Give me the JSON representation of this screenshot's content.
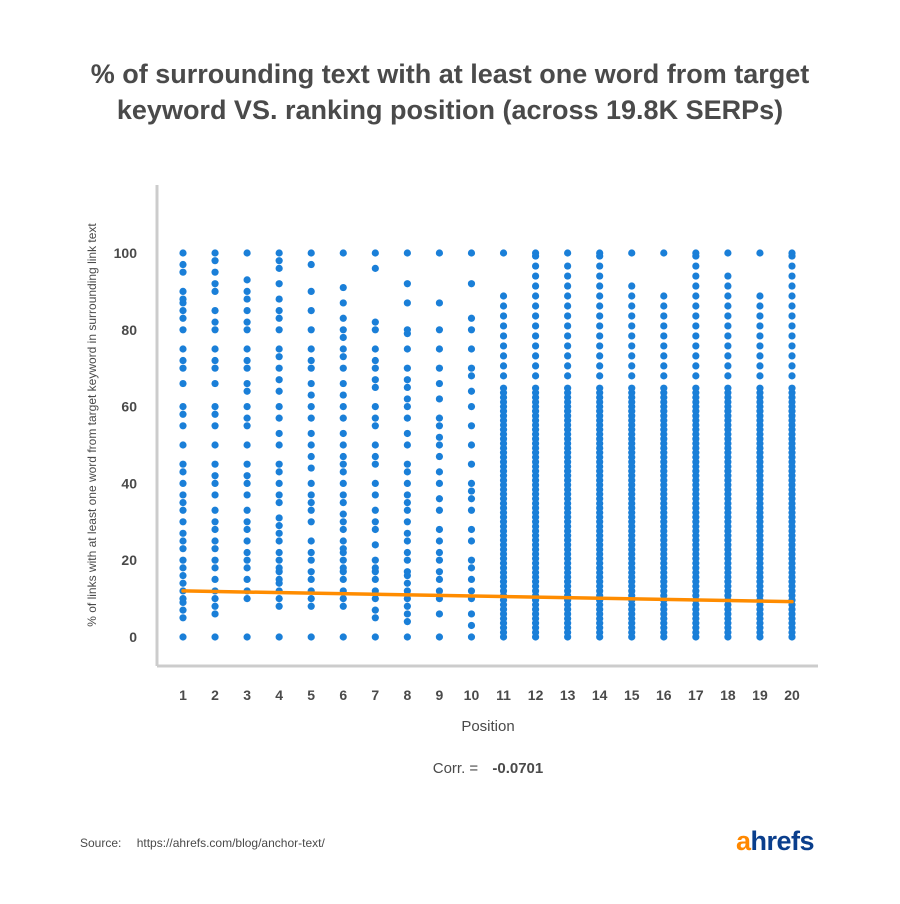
{
  "title": {
    "line1": "% of surrounding text with at least one word from target",
    "line2": "keyword VS. ranking position (across 19.8K SERPs)"
  },
  "colors": {
    "points": "#1a7fd8",
    "trend": "#ff8c00",
    "axis": "#cccccc",
    "text": "#4a4a4a",
    "logo_a": "#ff8800",
    "logo_rest": "#0a3e8c"
  },
  "chart_data": {
    "type": "scatter",
    "title": "% of surrounding text with at least one word from target keyword VS. ranking position (across 19.8K SERPs)",
    "xlabel": "Position",
    "ylabel": "% of links with at least one word from target keyword in surrounding link text",
    "x_ticks": [
      "1",
      "2",
      "3",
      "4",
      "5",
      "6",
      "7",
      "8",
      "9",
      "10",
      "11",
      "12",
      "13",
      "14",
      "15",
      "16",
      "17",
      "18",
      "19",
      "20"
    ],
    "y_ticks": [
      "0",
      "20",
      "40",
      "60",
      "80",
      "100"
    ],
    "xlim": [
      0.5,
      20.5
    ],
    "ylim": [
      -8,
      120
    ],
    "grid": false,
    "trendline": {
      "start": [
        1,
        12.0
      ],
      "end": [
        20,
        9.2
      ]
    },
    "series": [
      {
        "values": [
          [
            0,
            5,
            7,
            9,
            10,
            12,
            14,
            16,
            18,
            20,
            23,
            25,
            27,
            30,
            33,
            35,
            37,
            40,
            43,
            45,
            50,
            55,
            58,
            60,
            66,
            70,
            72,
            75,
            80,
            83,
            85,
            87,
            88,
            90,
            95,
            97,
            100
          ],
          [
            0,
            6,
            8,
            10,
            12,
            15,
            18,
            20,
            23,
            25,
            28,
            30,
            33,
            37,
            40,
            42,
            45,
            50,
            55,
            58,
            60,
            66,
            70,
            72,
            75,
            80,
            82,
            85,
            90,
            92,
            95,
            98,
            100
          ],
          [
            0,
            10,
            12,
            15,
            18,
            20,
            22,
            25,
            28,
            30,
            33,
            37,
            40,
            42,
            45,
            50,
            55,
            57,
            60,
            64,
            66,
            70,
            72,
            75,
            80,
            82,
            85,
            88,
            90,
            93,
            100
          ],
          [
            0,
            8,
            10,
            12,
            14,
            15,
            17,
            18,
            20,
            22,
            25,
            27,
            29,
            31,
            35,
            37,
            40,
            43,
            45,
            50,
            53,
            57,
            60,
            64,
            67,
            70,
            73,
            75,
            80,
            83,
            85,
            88,
            92,
            96,
            98,
            100
          ],
          [
            0,
            8,
            10,
            12,
            15,
            17,
            20,
            22,
            25,
            30,
            33,
            35,
            37,
            40,
            44,
            47,
            50,
            53,
            57,
            60,
            63,
            66,
            70,
            72,
            75,
            80,
            85,
            90,
            97,
            100
          ],
          [
            0,
            8,
            10,
            12,
            15,
            17,
            18,
            20,
            22,
            23,
            25,
            28,
            30,
            32,
            35,
            37,
            40,
            43,
            45,
            47,
            50,
            53,
            57,
            60,
            63,
            66,
            70,
            73,
            75,
            78,
            80,
            83,
            87,
            91,
            100
          ],
          [
            0,
            5,
            7,
            10,
            12,
            15,
            17,
            18,
            20,
            24,
            28,
            30,
            33,
            37,
            40,
            45,
            47,
            50,
            55,
            57,
            60,
            65,
            67,
            70,
            72,
            75,
            80,
            82,
            96,
            100
          ],
          [
            0,
            4,
            6,
            8,
            10,
            12,
            14,
            16,
            17,
            20,
            22,
            25,
            27,
            30,
            33,
            35,
            37,
            40,
            43,
            45,
            50,
            53,
            57,
            60,
            62,
            65,
            67,
            70,
            75,
            79,
            80,
            87,
            92,
            100
          ],
          [
            0,
            6,
            10,
            12,
            15,
            17,
            20,
            22,
            25,
            28,
            33,
            36,
            40,
            43,
            47,
            50,
            52,
            55,
            57,
            62,
            66,
            70,
            75,
            80,
            87,
            100
          ],
          [
            0,
            3,
            6,
            10,
            12,
            15,
            18,
            20,
            25,
            28,
            33,
            36,
            38,
            40,
            45,
            50,
            55,
            60,
            64,
            68,
            70,
            75,
            80,
            83,
            92,
            100
          ]
        ]
      }
    ]
  },
  "axes": {
    "x_label": "Position",
    "y_label": "% of links with at least one word from target keyword in surrounding link text"
  },
  "correlation": {
    "label": "Corr. =",
    "value": "-0.0701"
  },
  "source": {
    "label": "Source:",
    "url": "https://ahrefs.com/blog/anchor-text/"
  },
  "logo": {
    "a": "a",
    "rest": "hrefs"
  }
}
